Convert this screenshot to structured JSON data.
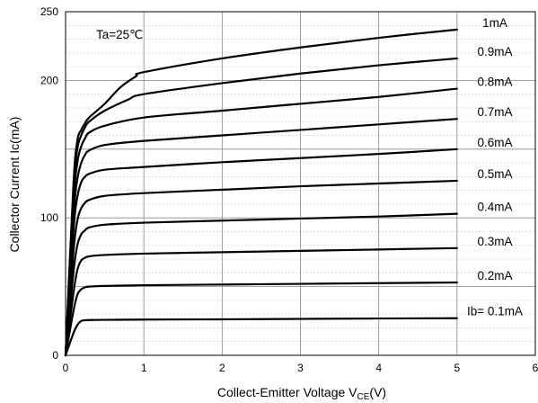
{
  "chart_data": {
    "type": "line",
    "title": "",
    "annotation": "Ta=25℃",
    "xlabel_main": "Collect-Emitter Voltage  V",
    "xlabel_sub": "CE",
    "xlabel_tail": "(V)",
    "ylabel": "Collector  Current   Ic(mA)",
    "xlim": [
      0,
      6
    ],
    "ylim": [
      0,
      250
    ],
    "xticks": [
      0,
      1,
      2,
      3,
      4,
      5,
      6
    ],
    "xtick_labels": [
      "0",
      "1",
      "2",
      "3",
      "4",
      "5",
      "6"
    ],
    "yticks": [
      0,
      100,
      200,
      250
    ],
    "ytick_labels": [
      "0",
      "100",
      "200",
      "250"
    ],
    "grid": true,
    "legend": "inline-right",
    "series": [
      {
        "name": "Ib= 0.1mA",
        "x": [
          0,
          0.1,
          0.15,
          0.2,
          0.25,
          0.3,
          0.5,
          1,
          2,
          3,
          4,
          5
        ],
        "y": [
          0,
          16,
          22,
          25,
          25.5,
          25.7,
          25.8,
          26,
          26.2,
          26.5,
          26.8,
          27
        ]
      },
      {
        "name": "0.2mA",
        "x": [
          0,
          0.1,
          0.15,
          0.2,
          0.25,
          0.3,
          0.5,
          1,
          2,
          3,
          4,
          5
        ],
        "y": [
          0,
          32,
          44,
          48,
          49.5,
          50,
          50.5,
          51,
          51.5,
          52,
          52.5,
          53
        ]
      },
      {
        "name": "0.3mA",
        "x": [
          0,
          0.1,
          0.15,
          0.2,
          0.25,
          0.3,
          0.5,
          1,
          2,
          3,
          4,
          5
        ],
        "y": [
          0,
          45,
          62,
          69,
          71,
          72,
          73,
          74,
          75,
          76,
          77,
          78
        ]
      },
      {
        "name": "0.4mA",
        "x": [
          0,
          0.1,
          0.15,
          0.2,
          0.25,
          0.3,
          0.5,
          1,
          2,
          3,
          4,
          5
        ],
        "y": [
          0,
          60,
          80,
          88,
          91,
          93,
          95,
          96.5,
          98,
          99.5,
          101,
          103
        ]
      },
      {
        "name": "0.5mA",
        "x": [
          0,
          0.1,
          0.15,
          0.2,
          0.25,
          0.3,
          0.5,
          1,
          2,
          3,
          4,
          5
        ],
        "y": [
          0,
          75,
          98,
          107,
          111,
          113,
          116,
          118,
          120.5,
          123,
          125,
          127
        ]
      },
      {
        "name": "0.6mA",
        "x": [
          0,
          0.1,
          0.15,
          0.2,
          0.25,
          0.3,
          0.5,
          1,
          2,
          3,
          4,
          5
        ],
        "y": [
          0,
          90,
          115,
          126,
          130,
          132,
          135,
          137,
          140.5,
          143.5,
          146.5,
          150
        ]
      },
      {
        "name": "0.7mA",
        "x": [
          0,
          0.1,
          0.15,
          0.2,
          0.25,
          0.3,
          0.5,
          1,
          2,
          3,
          4,
          5
        ],
        "y": [
          0,
          100,
          128,
          140,
          146,
          149,
          153,
          156,
          160,
          164,
          168,
          172
        ]
      },
      {
        "name": "0.8mA",
        "x": [
          0,
          0.1,
          0.15,
          0.2,
          0.25,
          0.3,
          0.5,
          1,
          2,
          3,
          4,
          5
        ],
        "y": [
          0,
          110,
          140,
          152,
          158,
          162,
          167,
          173,
          178,
          183,
          188,
          194
        ]
      },
      {
        "name": "0.9mA",
        "x": [
          0,
          0.1,
          0.15,
          0.2,
          0.25,
          0.3,
          0.5,
          0.8,
          1,
          2,
          3,
          4,
          5
        ],
        "y": [
          0,
          118,
          150,
          160,
          166,
          170,
          178,
          186,
          190,
          198,
          205,
          211,
          216
        ]
      },
      {
        "name": "1mA",
        "x": [
          0,
          0.1,
          0.15,
          0.2,
          0.25,
          0.3,
          0.5,
          0.7,
          0.9,
          1,
          2,
          3,
          4,
          5
        ],
        "y": [
          0,
          124,
          156,
          164,
          169,
          173,
          183,
          195,
          203,
          206,
          216,
          224,
          231,
          237
        ]
      }
    ]
  }
}
